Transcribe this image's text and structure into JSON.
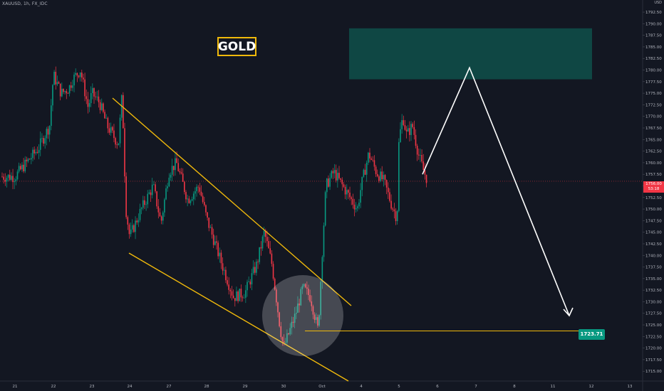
{
  "chart_data": {
    "type": "candlestick",
    "symbol": "XAUUSD, 1h, FX_IDC",
    "currency": "USD",
    "annotation_label": "GOLD",
    "x_ticks": [
      "21",
      "22",
      "23",
      "24",
      "27",
      "28",
      "29",
      "30",
      "Oct",
      "4",
      "5",
      "6",
      "7",
      "8",
      "11",
      "12",
      "13"
    ],
    "y_ticks": [
      "1792.50",
      "1790.00",
      "1787.50",
      "1785.00",
      "1782.50",
      "1780.00",
      "1777.50",
      "1775.00",
      "1772.50",
      "1770.00",
      "1767.50",
      "1765.00",
      "1762.50",
      "1760.00",
      "1757.50",
      "1755.00",
      "1752.50",
      "1750.00",
      "1747.50",
      "1745.00",
      "1742.50",
      "1740.00",
      "1737.50",
      "1735.00",
      "1732.50",
      "1730.00",
      "1727.50",
      "1725.00",
      "1722.50",
      "1720.00",
      "1717.50",
      "1715.00"
    ],
    "ylim": [
      1713.5,
      1794.5
    ],
    "current_price": "1756.00",
    "countdown": "53:18",
    "target_price": "1723.71",
    "colors": {
      "up": "#089981",
      "down": "#f23645",
      "channel": "#f0b90b",
      "zone": "#0f4a47",
      "background": "#131722",
      "arrow": "#ffffff"
    },
    "close_path": [
      [
        "21",
        1757
      ],
      [
        "21.3",
        1760
      ],
      [
        "21.6",
        1763
      ],
      [
        "21.9",
        1768
      ],
      [
        "22",
        1779
      ],
      [
        "22.2",
        1775
      ],
      [
        "22.4",
        1776
      ],
      [
        "22.5",
        1778
      ],
      [
        "22.7",
        1780
      ],
      [
        "22.9",
        1772
      ],
      [
        "23",
        1775
      ],
      [
        "23.2",
        1773
      ],
      [
        "23.4",
        1768
      ],
      [
        "23.7",
        1764
      ],
      [
        "23.8",
        1775
      ],
      [
        "23.9",
        1750
      ],
      [
        "24",
        1744
      ],
      [
        "24.3",
        1750
      ],
      [
        "24.6",
        1755
      ],
      [
        "24.8",
        1747
      ],
      [
        "27",
        1758
      ],
      [
        "27.2",
        1760
      ],
      [
        "27.5",
        1752
      ],
      [
        "27.8",
        1755
      ],
      [
        "28",
        1748
      ],
      [
        "28.4",
        1738
      ],
      [
        "28.7",
        1731
      ],
      [
        "29",
        1732
      ],
      [
        "29.3",
        1738
      ],
      [
        "29.5",
        1745
      ],
      [
        "29.7",
        1738
      ],
      [
        "29.9",
        1725
      ],
      [
        "30",
        1720
      ],
      [
        "30.3",
        1727
      ],
      [
        "30.5",
        1733
      ],
      [
        "30.7",
        1731
      ],
      [
        "30.9",
        1723.7
      ],
      [
        "Oct",
        1740
      ],
      [
        "Oct.1",
        1755
      ],
      [
        "Oct.3",
        1758
      ],
      [
        "Oct.6",
        1754
      ],
      [
        "Oct.9",
        1750
      ],
      [
        "4",
        1755
      ],
      [
        "4.2",
        1762
      ],
      [
        "4.4",
        1758
      ],
      [
        "4.6",
        1756
      ],
      [
        "4.8",
        1751
      ],
      [
        "4.95",
        1748
      ],
      [
        "5",
        1765
      ],
      [
        "5.1",
        1770
      ],
      [
        "5.2",
        1766
      ],
      [
        "5.35",
        1768
      ],
      [
        "5.5",
        1762
      ],
      [
        "5.65",
        1758
      ],
      [
        "5.75",
        1756
      ]
    ],
    "zone": {
      "from_price": 1778,
      "to_price": 1789
    },
    "projection": [
      [
        "5.75",
        1757.5
      ],
      [
        "7",
        1780.5
      ],
      [
        "11",
        1727
      ]
    ],
    "channel_upper": [
      [
        1774.5,
        1730
      ]
    ],
    "channel_lower": [
      [
        1741,
        1712
      ]
    ]
  }
}
